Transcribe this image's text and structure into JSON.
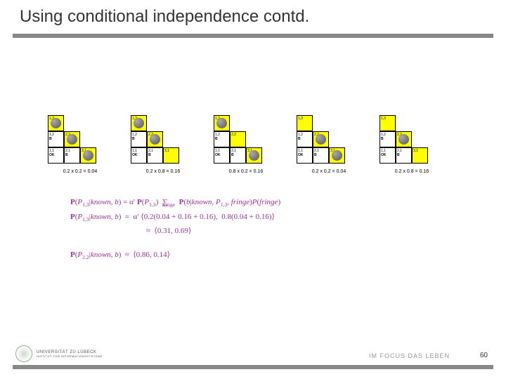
{
  "title": "Using conditional independence contd.",
  "page_number": "60",
  "footer": {
    "university": "UNIVERSITÄT ZU LÜBECK",
    "institute_line": "INSTITUT FÜR INFORMATIONSSYSTEME",
    "slogan": "IM FOCUS DAS LEBEN"
  },
  "boards": [
    {
      "caption": "0.2 x 0.2 = 0.04",
      "cells": {
        "r0c0": {
          "label": "1,3",
          "bg": "yellow",
          "circle": true
        },
        "r1c0": {
          "label": "1,2",
          "bg": "white",
          "sub": "B"
        },
        "r1c1": {
          "label": "2,2",
          "bg": "yellow",
          "circle": true
        },
        "r2c0": {
          "label": "1,1",
          "bg": "white",
          "sub": "OK"
        },
        "r2c1": {
          "label": "2,1",
          "bg": "white",
          "sub": "B"
        },
        "r2c2": {
          "label": "3,1",
          "bg": "yellow",
          "circle": true
        }
      }
    },
    {
      "caption": "0.2 x 0.8 = 0.16",
      "cells": {
        "r0c0": {
          "label": "1,3",
          "bg": "yellow",
          "circle": true
        },
        "r1c0": {
          "label": "1,2",
          "bg": "white",
          "sub": "B"
        },
        "r1c1": {
          "label": "2,2",
          "bg": "yellow",
          "circle": true
        },
        "r2c0": {
          "label": "1,1",
          "bg": "white",
          "sub": "OK"
        },
        "r2c1": {
          "label": "2,1",
          "bg": "white",
          "sub": "B"
        },
        "r2c2": {
          "label": "3,1",
          "bg": "yellow"
        }
      }
    },
    {
      "caption": "0.8 x 0.2 = 0.16",
      "cells": {
        "r0c0": {
          "label": "1,3",
          "bg": "yellow",
          "circle": true
        },
        "r1c0": {
          "label": "1,2",
          "bg": "white",
          "sub": "B"
        },
        "r1c1": {
          "label": "2,2",
          "bg": "yellow"
        },
        "r2c0": {
          "label": "1,1",
          "bg": "white",
          "sub": "OK"
        },
        "r2c1": {
          "label": "2,1",
          "bg": "white",
          "sub": "B"
        },
        "r2c2": {
          "label": "3,1",
          "bg": "yellow",
          "circle": true
        }
      }
    },
    {
      "caption": "0.2 x 0.2 = 0.04",
      "cells": {
        "r0c0": {
          "label": "1,3",
          "bg": "yellow"
        },
        "r1c0": {
          "label": "1,2",
          "bg": "white",
          "sub": "B"
        },
        "r1c1": {
          "label": "2,2",
          "bg": "yellow",
          "circle": true
        },
        "r2c0": {
          "label": "1,1",
          "bg": "white",
          "sub": "OK"
        },
        "r2c1": {
          "label": "2,1",
          "bg": "white",
          "sub": "B"
        },
        "r2c2": {
          "label": "3,1",
          "bg": "yellow",
          "circle": true
        }
      }
    },
    {
      "caption": "0.2 x 0.8 = 0.16",
      "cells": {
        "r0c0": {
          "label": "1,3",
          "bg": "yellow"
        },
        "r1c0": {
          "label": "1,2",
          "bg": "white",
          "sub": "B"
        },
        "r1c1": {
          "label": "2,2",
          "bg": "yellow",
          "circle": true
        },
        "r2c0": {
          "label": "1,1",
          "bg": "white",
          "sub": "OK"
        },
        "r2c1": {
          "label": "2,1",
          "bg": "white",
          "sub": "B"
        },
        "r2c2": {
          "label": "3,1",
          "bg": "yellow"
        }
      }
    }
  ],
  "equations": {
    "line1": "P(P₁,₃|known, b) = α′ P(P₁,₃) ∑ P(b|known, P₁,₃, fringe) P(fringe)",
    "line1b": "fringe",
    "line2": "P(P₁,₃|known, b) = α′ ⟨0.2(0.04 + 0.16 + 0.16), 0.8(0.04 + 0.16)⟩",
    "line3": "≈ ⟨0.31, 0.69⟩",
    "line4": "P(P₂,₂|known, b) ≈ ⟨0.86, 0.14⟩"
  }
}
